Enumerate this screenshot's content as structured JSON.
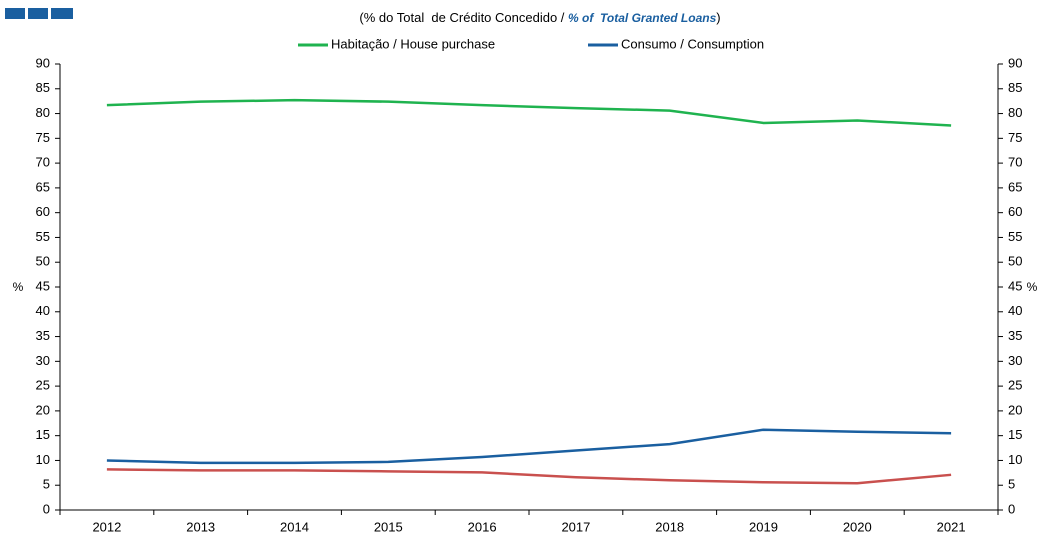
{
  "chart_data": {
    "type": "line",
    "title_pt": "(% do Total  de Crédito Concedido / ",
    "title_en": "% of  Total Granted Loans",
    "title_close": ")",
    "ylabel": "%",
    "y2label": "%",
    "categories": [
      "2012",
      "2013",
      "2014",
      "2015",
      "2016",
      "2017",
      "2018",
      "2019",
      "2020",
      "2021"
    ],
    "series": [
      {
        "name": "Habitação / House purchase",
        "color": "#1fb34f",
        "values": [
          81.7,
          82.4,
          82.7,
          82.4,
          81.7,
          81.1,
          80.6,
          78.1,
          78.6,
          77.6
        ]
      },
      {
        "name": "Consumo / Consumption",
        "color": "#1a5fa0",
        "values": [
          10.0,
          9.5,
          9.5,
          9.7,
          10.7,
          12.0,
          13.3,
          16.2,
          15.8,
          15.5
        ]
      },
      {
        "color": "#c9504e",
        "values": [
          8.2,
          8.0,
          8.0,
          7.8,
          7.6,
          6.6,
          6.0,
          5.6,
          5.4,
          7.1
        ]
      }
    ],
    "ylim": [
      0,
      90
    ],
    "yticks": [
      0,
      5,
      10,
      15,
      20,
      25,
      30,
      35,
      40,
      45,
      50,
      55,
      60,
      65,
      70,
      75,
      80,
      85,
      90
    ],
    "y2lim": [
      0,
      90
    ],
    "y2ticks": [
      0,
      5,
      10,
      15,
      20,
      25,
      30,
      35,
      40,
      45,
      50,
      55,
      60,
      65,
      70,
      75,
      80,
      85,
      90
    ],
    "grid": false
  }
}
